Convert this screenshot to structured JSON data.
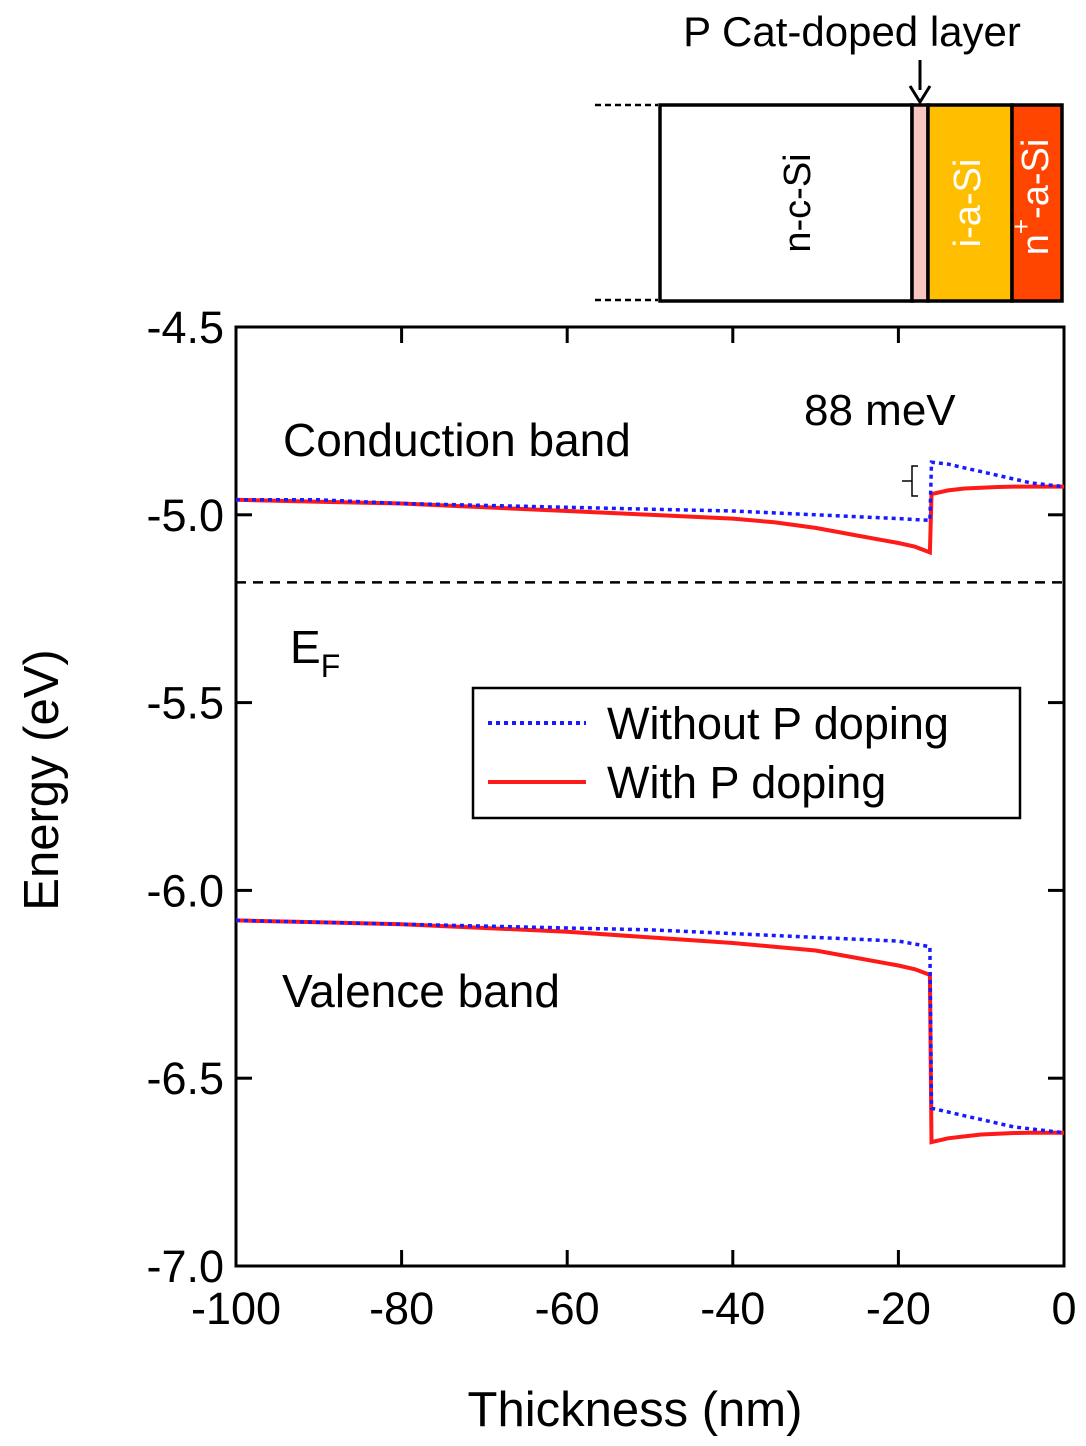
{
  "chart_data": {
    "type": "line",
    "xlabel": "Thickness (nm)",
    "ylabel": "Energy (eV)",
    "xlim": [
      -100,
      0
    ],
    "ylim": [
      -7.0,
      -4.5
    ],
    "xticks": [
      -100,
      -80,
      -60,
      -40,
      -20,
      0
    ],
    "xtick_labels": [
      "-100",
      "-80",
      "-60",
      "-40",
      "-20",
      "0"
    ],
    "yticks": [
      -4.5,
      -5.0,
      -5.5,
      -6.0,
      -6.5,
      -7.0
    ],
    "ytick_labels": [
      "-4.5",
      "-5.0",
      "-5.5",
      "-6.0",
      "-6.5",
      "-7.0"
    ],
    "grid": false,
    "legend_position": "center-right",
    "fermi_level": -5.18,
    "series": [
      {
        "name": "Without P doping",
        "color": "#1a1aff",
        "style": "dotted",
        "conduction_band": {
          "x": [
            -100,
            -90,
            -80,
            -70,
            -60,
            -50,
            -40,
            -30,
            -20,
            -16.2,
            -16.0,
            -14,
            -12,
            -10,
            -8,
            -6,
            -4,
            -2,
            0
          ],
          "y": [
            -4.96,
            -4.96,
            -4.97,
            -4.975,
            -4.98,
            -4.985,
            -4.99,
            -5.0,
            -5.01,
            -5.015,
            -4.86,
            -4.865,
            -4.875,
            -4.885,
            -4.895,
            -4.905,
            -4.915,
            -4.92,
            -4.925
          ]
        },
        "valence_band": {
          "x": [
            -100,
            -90,
            -80,
            -70,
            -60,
            -50,
            -40,
            -30,
            -20,
            -16.2,
            -16.0,
            -14,
            -12,
            -10,
            -8,
            -6,
            -4,
            -2,
            0
          ],
          "y": [
            -6.08,
            -6.085,
            -6.09,
            -6.095,
            -6.1,
            -6.105,
            -6.115,
            -6.125,
            -6.135,
            -6.15,
            -6.58,
            -6.59,
            -6.6,
            -6.61,
            -6.62,
            -6.63,
            -6.635,
            -6.64,
            -6.645
          ]
        }
      },
      {
        "name": "With P doping",
        "color": "#ff1a1a",
        "style": "solid",
        "conduction_band": {
          "x": [
            -100,
            -90,
            -80,
            -70,
            -60,
            -50,
            -40,
            -35,
            -30,
            -25,
            -20,
            -18,
            -16.2,
            -16.0,
            -14,
            -12,
            -10,
            -8,
            -6,
            -4,
            -2,
            0
          ],
          "y": [
            -4.96,
            -4.965,
            -4.97,
            -4.98,
            -4.99,
            -5.0,
            -5.01,
            -5.02,
            -5.035,
            -5.055,
            -5.075,
            -5.085,
            -5.1,
            -4.945,
            -4.935,
            -4.93,
            -4.928,
            -4.926,
            -4.925,
            -4.925,
            -4.925,
            -4.925
          ]
        },
        "valence_band": {
          "x": [
            -100,
            -90,
            -80,
            -70,
            -60,
            -50,
            -40,
            -35,
            -30,
            -25,
            -20,
            -18,
            -16.2,
            -16.0,
            -14,
            -12,
            -10,
            -8,
            -6,
            -4,
            -2,
            0
          ],
          "y": [
            -6.08,
            -6.085,
            -6.09,
            -6.1,
            -6.11,
            -6.125,
            -6.14,
            -6.15,
            -6.16,
            -6.18,
            -6.2,
            -6.21,
            -6.225,
            -6.67,
            -6.66,
            -6.655,
            -6.65,
            -6.648,
            -6.646,
            -6.645,
            -6.645,
            -6.645
          ]
        }
      }
    ],
    "annotations": {
      "conduction_band": "Conduction band",
      "valence_band": "Valence band",
      "fermi_base": "E",
      "fermi_sub": "F",
      "offset": "88 meV"
    },
    "inset": {
      "title": "P Cat-doped layer",
      "layers": [
        {
          "label": "n-c-Si",
          "color": "#ffffff"
        },
        {
          "label": "",
          "color": "#f7c6c0"
        },
        {
          "label": "i-a-Si",
          "color": "#ffbe00"
        },
        {
          "label_base": "n",
          "label_sup": "+",
          "label_rest": "-a-Si",
          "color": "#ff4500"
        }
      ]
    }
  }
}
